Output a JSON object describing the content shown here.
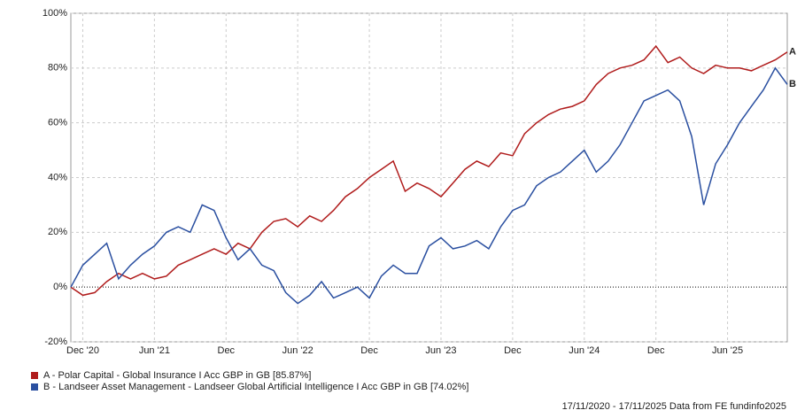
{
  "chart_data": {
    "type": "line",
    "x": [
      "2020-11",
      "2020-12",
      "2021-01",
      "2021-02",
      "2021-03",
      "2021-04",
      "2021-05",
      "2021-06",
      "2021-07",
      "2021-08",
      "2021-09",
      "2021-10",
      "2021-11",
      "2021-12",
      "2022-01",
      "2022-02",
      "2022-03",
      "2022-04",
      "2022-05",
      "2022-06",
      "2022-07",
      "2022-08",
      "2022-09",
      "2022-10",
      "2022-11",
      "2022-12",
      "2023-01",
      "2023-02",
      "2023-03",
      "2023-04",
      "2023-05",
      "2023-06",
      "2023-07",
      "2023-08",
      "2023-09",
      "2023-10",
      "2023-11",
      "2023-12",
      "2024-01",
      "2024-02",
      "2024-03",
      "2024-04",
      "2024-05",
      "2024-06",
      "2024-07",
      "2024-08",
      "2024-09",
      "2024-10",
      "2024-11",
      "2024-12",
      "2025-01",
      "2025-02",
      "2025-03",
      "2025-04",
      "2025-05",
      "2025-06",
      "2025-07",
      "2025-08",
      "2025-09",
      "2025-10",
      "2025-11"
    ],
    "series": [
      {
        "name": "A - Polar Capital - Global Insurance I Acc GBP in GB [85.87%]",
        "end_label": "A",
        "color": "#b01c1c",
        "values": [
          0,
          -3,
          -2,
          2,
          5,
          3,
          5,
          3,
          4,
          8,
          10,
          12,
          14,
          12,
          16,
          14,
          20,
          24,
          25,
          22,
          26,
          24,
          28,
          33,
          36,
          40,
          43,
          46,
          35,
          38,
          36,
          33,
          38,
          43,
          46,
          44,
          49,
          48,
          56,
          60,
          63,
          65,
          66,
          68,
          74,
          78,
          80,
          81,
          83,
          88,
          82,
          84,
          80,
          78,
          81,
          80,
          80,
          79,
          81,
          83,
          85.87
        ]
      },
      {
        "name": "B - Landseer Asset Management - Landseer Global Artificial Intelligence I Acc GBP in GB [74.02%]",
        "end_label": "B",
        "color": "#2a4fa0",
        "values": [
          0,
          8,
          12,
          16,
          3,
          8,
          12,
          15,
          20,
          22,
          20,
          30,
          28,
          18,
          10,
          14,
          8,
          6,
          -2,
          -6,
          -3,
          2,
          -4,
          -2,
          0,
          -4,
          4,
          8,
          5,
          5,
          15,
          18,
          14,
          15,
          17,
          14,
          22,
          28,
          30,
          37,
          40,
          42,
          46,
          50,
          42,
          46,
          52,
          60,
          68,
          70,
          72,
          68,
          55,
          30,
          45,
          52,
          60,
          66,
          72,
          80,
          74.02
        ]
      }
    ],
    "ylim": [
      -20,
      100
    ],
    "yticks": [
      {
        "value": 100,
        "label": "100%"
      },
      {
        "value": 80,
        "label": "80%"
      },
      {
        "value": 60,
        "label": "60%"
      },
      {
        "value": 40,
        "label": "40%"
      },
      {
        "value": 20,
        "label": "20%"
      },
      {
        "value": 0,
        "label": "0%"
      },
      {
        "value": -20,
        "label": "-20%"
      }
    ],
    "xticks": [
      {
        "value": "2020-12",
        "label": "Dec '20"
      },
      {
        "value": "2021-06",
        "label": "Jun '21"
      },
      {
        "value": "2021-12",
        "label": "Dec"
      },
      {
        "value": "2022-06",
        "label": "Jun '22"
      },
      {
        "value": "2022-12",
        "label": "Dec"
      },
      {
        "value": "2023-06",
        "label": "Jun '23"
      },
      {
        "value": "2023-12",
        "label": "Dec"
      },
      {
        "value": "2024-06",
        "label": "Jun '24"
      },
      {
        "value": "2024-12",
        "label": "Dec"
      },
      {
        "value": "2025-06",
        "label": "Jun '25"
      }
    ],
    "grid": true,
    "footer": "17/11/2020 - 17/11/2025 Data from FE fundinfo2025"
  }
}
